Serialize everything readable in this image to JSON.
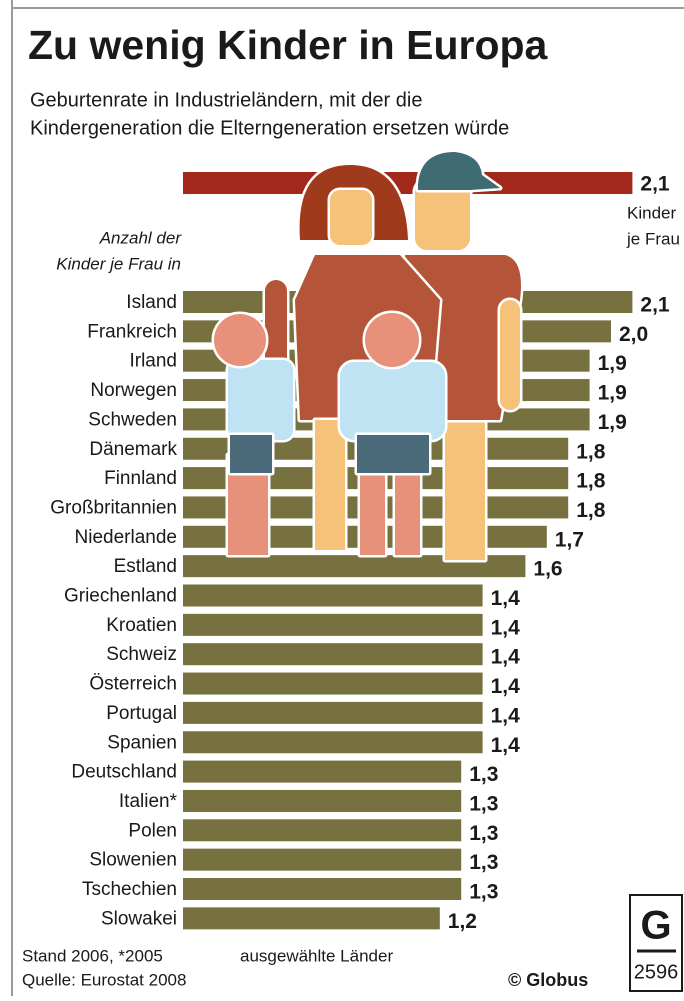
{
  "chart_data": {
    "type": "bar",
    "orientation": "horizontal",
    "title": "Zu wenig Kinder in Europa",
    "subtitle": [
      "Geburtenrate in Industrieländern, mit der die",
      "Kindergeneration die Elterngeneration ersetzen würde"
    ],
    "axis_note": [
      "Anzahl der",
      "Kinder je Frau in"
    ],
    "reference": {
      "value": 2.1,
      "label": "2,1",
      "note": [
        "Kinder",
        "je Frau"
      ],
      "color": "#a3281c"
    },
    "categories": [
      "Island",
      "Frankreich",
      "Irland",
      "Norwegen",
      "Schweden",
      "Dänemark",
      "Finnland",
      "Großbritannien",
      "Niederlande",
      "Estland",
      "Griechenland",
      "Kroatien",
      "Schweiz",
      "Österreich",
      "Portugal",
      "Spanien",
      "Deutschland",
      "Italien*",
      "Polen",
      "Slowenien",
      "Tschechien",
      "Slowakei"
    ],
    "values": [
      2.1,
      2.0,
      1.9,
      1.9,
      1.9,
      1.8,
      1.8,
      1.8,
      1.7,
      1.6,
      1.4,
      1.4,
      1.4,
      1.4,
      1.4,
      1.4,
      1.3,
      1.3,
      1.3,
      1.3,
      1.3,
      1.2
    ],
    "value_labels": [
      "2,1",
      "2,0",
      "1,9",
      "1,9",
      "1,9",
      "1,8",
      "1,8",
      "1,8",
      "1,7",
      "1,6",
      "1,4",
      "1,4",
      "1,4",
      "1,4",
      "1,4",
      "1,4",
      "1,3",
      "1,3",
      "1,3",
      "1,3",
      "1,3",
      "1,2"
    ],
    "color": "#77703f",
    "footer": {
      "notes": [
        "Stand 2006, *2005",
        "Quelle: Eurostat 2008"
      ],
      "selection": "ausgewählte Länder",
      "source": "© Globus",
      "code": "2596"
    }
  }
}
